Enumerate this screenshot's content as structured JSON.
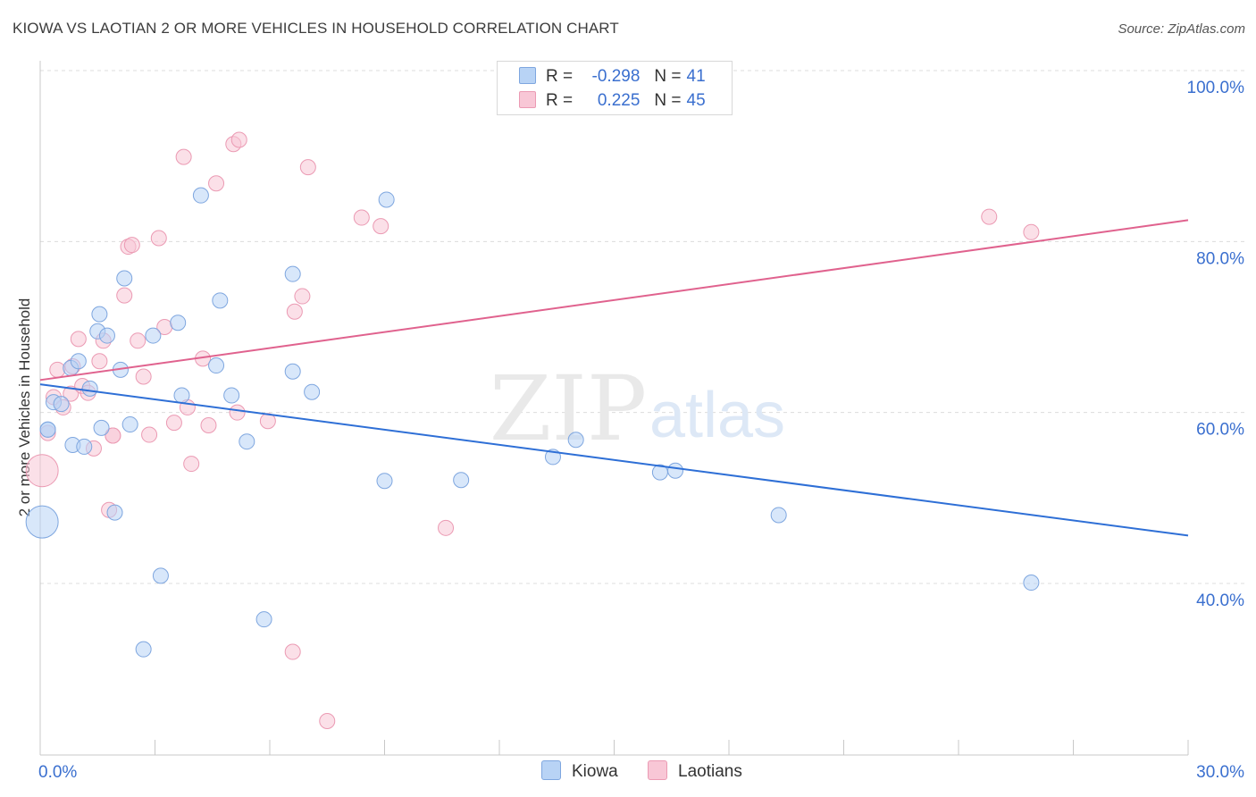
{
  "header": {
    "title": "KIOWA VS LAOTIAN 2 OR MORE VEHICLES IN HOUSEHOLD CORRELATION CHART",
    "source": "Source: ZipAtlas.com"
  },
  "watermark": {
    "zip": "ZIP",
    "atlas": "atlas"
  },
  "legend_top": {
    "kiowa": {
      "r_label": "R =",
      "r_value": "-0.298",
      "n_label": "N =",
      "n_value": "41"
    },
    "laotians": {
      "r_label": "R =",
      "r_value": "0.225",
      "n_label": "N =",
      "n_value": "45"
    }
  },
  "colors": {
    "kiowa_fill": "#b8d3f5",
    "kiowa_stroke": "#7ea6df",
    "kiowa_line": "#2e6fd6",
    "laotians_fill": "#f8c7d6",
    "laotians_stroke": "#eb9ab3",
    "laotians_line": "#e0628e",
    "axis_text": "#3a6fcf",
    "grid": "#dcdcdc"
  },
  "chart_data": {
    "type": "scatter",
    "title": "KIOWA VS LAOTIAN 2 OR MORE VEHICLES IN HOUSEHOLD CORRELATION CHART",
    "xlabel": "",
    "ylabel": "2 or more Vehicles in Household",
    "xlim": [
      0,
      30
    ],
    "ylim": [
      20,
      103
    ],
    "x_tick_labels": [
      "0.0%",
      "30.0%"
    ],
    "y_ticks": [
      40,
      60,
      80,
      100
    ],
    "y_tick_labels": [
      "40.0%",
      "60.0%",
      "80.0%",
      "100.0%"
    ],
    "legend_position": "top-center",
    "series": [
      {
        "name": "Kiowa",
        "r": -0.298,
        "n": 41,
        "trend": {
          "x": [
            0,
            30
          ],
          "y": [
            63.3,
            45.6
          ]
        },
        "points": [
          {
            "x": 0.05,
            "y": 47.2,
            "big": true
          },
          {
            "x": 0.2,
            "y": 58.0
          },
          {
            "x": 0.35,
            "y": 61.2
          },
          {
            "x": 0.55,
            "y": 61.0
          },
          {
            "x": 0.8,
            "y": 65.2
          },
          {
            "x": 0.85,
            "y": 56.2
          },
          {
            "x": 1.0,
            "y": 66.0
          },
          {
            "x": 1.15,
            "y": 56.0
          },
          {
            "x": 1.3,
            "y": 62.8
          },
          {
            "x": 1.5,
            "y": 69.5
          },
          {
            "x": 1.55,
            "y": 71.5
          },
          {
            "x": 1.6,
            "y": 58.2
          },
          {
            "x": 1.75,
            "y": 69.0
          },
          {
            "x": 1.95,
            "y": 48.3
          },
          {
            "x": 2.1,
            "y": 65.0
          },
          {
            "x": 2.2,
            "y": 75.7
          },
          {
            "x": 2.35,
            "y": 58.6
          },
          {
            "x": 2.7,
            "y": 32.3
          },
          {
            "x": 2.95,
            "y": 69.0
          },
          {
            "x": 3.15,
            "y": 40.9
          },
          {
            "x": 3.6,
            "y": 70.5
          },
          {
            "x": 3.7,
            "y": 62.0
          },
          {
            "x": 4.2,
            "y": 85.4
          },
          {
            "x": 4.6,
            "y": 65.5
          },
          {
            "x": 4.7,
            "y": 73.1
          },
          {
            "x": 5.0,
            "y": 62.0
          },
          {
            "x": 5.4,
            "y": 56.6
          },
          {
            "x": 5.85,
            "y": 35.8
          },
          {
            "x": 6.6,
            "y": 64.8
          },
          {
            "x": 6.6,
            "y": 76.2
          },
          {
            "x": 7.1,
            "y": 62.4
          },
          {
            "x": 9.0,
            "y": 52.0
          },
          {
            "x": 9.05,
            "y": 84.9
          },
          {
            "x": 11.0,
            "y": 52.1
          },
          {
            "x": 13.4,
            "y": 54.8
          },
          {
            "x": 14.0,
            "y": 56.8
          },
          {
            "x": 16.2,
            "y": 53.0
          },
          {
            "x": 16.6,
            "y": 53.2
          },
          {
            "x": 19.3,
            "y": 48.0
          },
          {
            "x": 25.9,
            "y": 40.1
          },
          {
            "x": 0.2,
            "y": 58.0
          }
        ]
      },
      {
        "name": "Laotians",
        "r": 0.225,
        "n": 45,
        "trend": {
          "x": [
            0,
            30
          ],
          "y": [
            63.8,
            82.5
          ]
        },
        "points": [
          {
            "x": 0.05,
            "y": 53.2,
            "big": true
          },
          {
            "x": 0.2,
            "y": 57.6
          },
          {
            "x": 0.35,
            "y": 61.8
          },
          {
            "x": 0.45,
            "y": 65.0
          },
          {
            "x": 0.6,
            "y": 60.6
          },
          {
            "x": 0.8,
            "y": 62.2
          },
          {
            "x": 0.85,
            "y": 65.4
          },
          {
            "x": 1.0,
            "y": 68.6
          },
          {
            "x": 1.1,
            "y": 63.1
          },
          {
            "x": 1.25,
            "y": 62.3
          },
          {
            "x": 1.4,
            "y": 55.8
          },
          {
            "x": 1.55,
            "y": 66.0
          },
          {
            "x": 1.65,
            "y": 68.4
          },
          {
            "x": 1.8,
            "y": 48.6
          },
          {
            "x": 1.9,
            "y": 57.3
          },
          {
            "x": 2.2,
            "y": 73.7
          },
          {
            "x": 2.3,
            "y": 79.4
          },
          {
            "x": 2.4,
            "y": 79.6
          },
          {
            "x": 2.55,
            "y": 68.4
          },
          {
            "x": 2.7,
            "y": 64.2
          },
          {
            "x": 2.85,
            "y": 57.4
          },
          {
            "x": 3.1,
            "y": 80.4
          },
          {
            "x": 3.25,
            "y": 70.0
          },
          {
            "x": 3.5,
            "y": 58.8
          },
          {
            "x": 3.75,
            "y": 89.9
          },
          {
            "x": 3.85,
            "y": 60.6
          },
          {
            "x": 3.95,
            "y": 54.0
          },
          {
            "x": 4.25,
            "y": 66.3
          },
          {
            "x": 4.4,
            "y": 58.5
          },
          {
            "x": 4.6,
            "y": 86.8
          },
          {
            "x": 5.05,
            "y": 91.4
          },
          {
            "x": 5.2,
            "y": 91.9
          },
          {
            "x": 5.15,
            "y": 60.0
          },
          {
            "x": 5.95,
            "y": 59.0
          },
          {
            "x": 6.6,
            "y": 32.0
          },
          {
            "x": 6.65,
            "y": 71.8
          },
          {
            "x": 6.85,
            "y": 73.6
          },
          {
            "x": 7.0,
            "y": 88.7
          },
          {
            "x": 7.5,
            "y": 23.9
          },
          {
            "x": 8.4,
            "y": 82.8
          },
          {
            "x": 8.9,
            "y": 81.8
          },
          {
            "x": 10.6,
            "y": 46.5
          },
          {
            "x": 24.8,
            "y": 82.9
          },
          {
            "x": 25.9,
            "y": 81.1
          },
          {
            "x": 1.9,
            "y": 57.3
          }
        ]
      }
    ]
  },
  "legend_bottom": {
    "kiowa": "Kiowa",
    "laotians": "Laotians"
  }
}
